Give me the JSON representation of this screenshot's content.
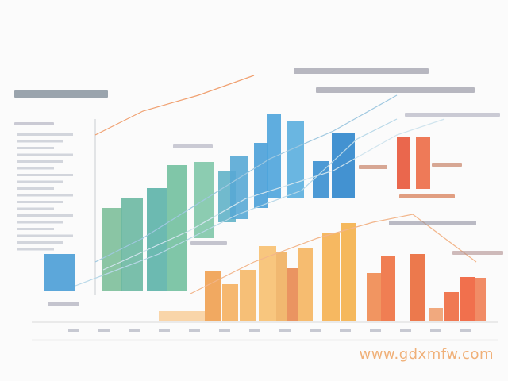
{
  "watermark": "www.gdxmfw.com"
}
